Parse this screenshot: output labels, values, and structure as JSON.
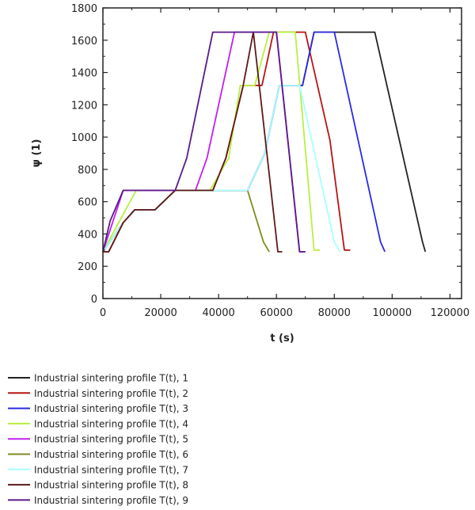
{
  "chart_data": {
    "type": "line",
    "xlabel": "t (s)",
    "ylabel": "ψ (1)",
    "xlim": [
      0,
      124000
    ],
    "ylim": [
      0,
      1800
    ],
    "xticks": [
      0,
      20000,
      40000,
      60000,
      80000,
      100000,
      120000
    ],
    "yticks": [
      0,
      200,
      400,
      600,
      800,
      1000,
      1200,
      1400,
      1600,
      1800
    ],
    "grid": false,
    "legend_position": "bottom-left, below plot",
    "series": [
      {
        "name": "Industrial sintering profile T(t), 1",
        "color": "#222222",
        "x": [
          0,
          7000,
          11000,
          18000,
          25000,
          50000,
          56000,
          61000,
          69000,
          73000,
          94000,
          110500,
          111500
        ],
        "y": [
          290,
          470,
          550,
          550,
          670,
          670,
          900,
          1320,
          1320,
          1650,
          1650,
          350,
          290
        ]
      },
      {
        "name": "Industrial sintering profile T(t), 2",
        "color": "#b81414",
        "x": [
          0,
          2000,
          7000,
          11000,
          18000,
          25000,
          38000,
          42500,
          48500,
          55000,
          59000,
          70000,
          78500,
          83500,
          85500
        ],
        "y": [
          290,
          290,
          470,
          550,
          550,
          670,
          670,
          870,
          1320,
          1320,
          1650,
          1650,
          980,
          300,
          300
        ]
      },
      {
        "name": "Industrial sintering profile T(t), 3",
        "color": "#2a2ae6",
        "x": [
          0,
          7000,
          11000,
          18000,
          25000,
          50000,
          56000,
          61000,
          69000,
          73000,
          80000,
          96000,
          97500
        ],
        "y": [
          290,
          470,
          550,
          550,
          670,
          670,
          900,
          1320,
          1320,
          1650,
          1650,
          350,
          290
        ]
      },
      {
        "name": "Industrial sintering profile T(t), 4",
        "color": "#b8f040",
        "x": [
          0,
          11500,
          37000,
          43500,
          47500,
          52500,
          57500,
          66500,
          73000,
          75000
        ],
        "y": [
          290,
          670,
          670,
          870,
          1320,
          1320,
          1650,
          1650,
          300,
          300
        ]
      },
      {
        "name": "Industrial sintering profile T(t), 5",
        "color": "#c020f0",
        "x": [
          0,
          7000,
          32000,
          36000,
          45500,
          60000,
          68000,
          70000
        ],
        "y": [
          290,
          670,
          670,
          870,
          1650,
          1650,
          290,
          290
        ]
      },
      {
        "name": "Industrial sintering profile T(t), 6",
        "color": "#808a20",
        "x": [
          0,
          7000,
          11000,
          18000,
          25000,
          50000,
          55500,
          57500
        ],
        "y": [
          290,
          470,
          550,
          550,
          670,
          670,
          350,
          290
        ]
      },
      {
        "name": "Industrial sintering profile T(t), 7",
        "color": "#a8ffff",
        "x": [
          0,
          7000,
          11000,
          18000,
          25000,
          50000,
          56000,
          61000,
          68000,
          80000,
          82000
        ],
        "y": [
          290,
          470,
          550,
          550,
          670,
          670,
          900,
          1320,
          1320,
          350,
          290
        ]
      },
      {
        "name": "Industrial sintering profile T(t), 8",
        "color": "#5e1818",
        "x": [
          0,
          2000,
          7000,
          11000,
          18000,
          25000,
          38000,
          42500,
          48500,
          52000,
          60500,
          62000
        ],
        "y": [
          290,
          290,
          470,
          550,
          550,
          670,
          670,
          870,
          1320,
          1650,
          290,
          290
        ]
      },
      {
        "name": "Industrial sintering profile T(t), 9",
        "color": "#5a1a8a",
        "x": [
          0,
          2500,
          7000,
          25000,
          29000,
          38000,
          60000,
          68000,
          70000
        ],
        "y": [
          290,
          480,
          670,
          670,
          870,
          1650,
          1650,
          290,
          290
        ]
      }
    ]
  }
}
